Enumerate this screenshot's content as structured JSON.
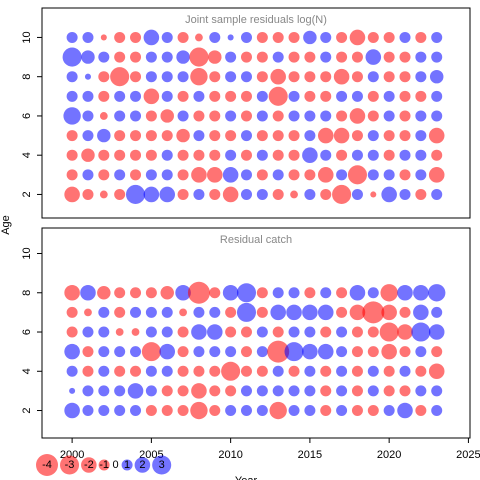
{
  "ylabel": "Age",
  "chart_data": [
    {
      "type": "bubble",
      "title": "Joint sample residuals log(N)",
      "x": [
        2000,
        2001,
        2002,
        2003,
        2004,
        2005,
        2006,
        2007,
        2008,
        2009,
        2010,
        2011,
        2012,
        2013,
        2014,
        2015,
        2016,
        2017,
        2018,
        2019,
        2020,
        2021,
        2022,
        2023
      ],
      "y": [
        2,
        3,
        4,
        5,
        6,
        7,
        8,
        9,
        10
      ],
      "values": [
        [
          -2,
          -1,
          -0.5,
          -1,
          3,
          2,
          2,
          -1,
          1,
          -1,
          -2,
          1,
          1,
          -1,
          -0.5,
          1,
          -1,
          -3,
          1,
          -0.3,
          2,
          1,
          -1,
          1
        ],
        [
          -1,
          1,
          -1,
          1,
          -1,
          1,
          1,
          -1,
          -2,
          -2,
          2,
          1,
          -1,
          1,
          -1,
          -1,
          -2,
          1,
          -3,
          1,
          1,
          -1,
          1,
          -2
        ],
        [
          -1,
          -1.5,
          -1,
          -1,
          -1,
          -1,
          1,
          -1,
          -1,
          -1,
          1,
          -1,
          1,
          -1,
          -1,
          2,
          1,
          -1,
          1,
          1,
          -1,
          1,
          1,
          -1
        ],
        [
          -1,
          1,
          1.5,
          -1,
          -1,
          -1,
          -1,
          -1.5,
          1,
          -1,
          -1,
          1,
          -1,
          -1,
          -1,
          1,
          -2,
          -2,
          -1,
          1,
          -1,
          -1,
          1,
          -2
        ],
        [
          2.5,
          1,
          -0.5,
          1,
          1,
          -1,
          -1.5,
          1,
          -1,
          -1,
          1,
          -1,
          1,
          -1,
          1,
          1,
          1,
          -1,
          -2,
          -1,
          1,
          -1,
          1,
          1
        ],
        [
          1,
          1,
          -1,
          1,
          1,
          -2,
          1,
          -1,
          1,
          -1,
          -1,
          -1,
          1,
          -3,
          1,
          -1,
          -1,
          1,
          1,
          -1,
          1,
          -1,
          -1,
          1
        ],
        [
          1,
          0.3,
          -1,
          -3,
          -1,
          1,
          1,
          1,
          -2.5,
          -1,
          1,
          1,
          -1,
          -2,
          -1,
          -1,
          -1,
          -2,
          -1,
          1,
          -1,
          -1,
          1,
          1.5
        ],
        [
          3,
          1.5,
          1,
          -1,
          -1,
          1,
          1,
          1.5,
          -3,
          -1.5,
          1,
          -1,
          -1,
          1,
          -1,
          -1,
          1,
          -1,
          -1,
          2,
          -1,
          -1,
          1,
          1
        ],
        [
          1,
          1,
          -0.3,
          -1,
          -1,
          2,
          1,
          -1,
          -0.5,
          1,
          0.3,
          1,
          -1,
          -1,
          -1,
          1.5,
          1,
          -1,
          -2,
          -1,
          -1,
          1,
          -1,
          1
        ]
      ],
      "xlim": [
        1998.1,
        2025.1
      ],
      "ylim": [
        0.8,
        11.5
      ],
      "yticks": [
        2,
        4,
        6,
        8,
        10
      ],
      "colors": {
        "negative": "#ff0000",
        "positive": "#0000ff"
      }
    },
    {
      "type": "bubble",
      "title": "Residual catch",
      "xlabel": "Year",
      "x": [
        2000,
        2001,
        2002,
        2003,
        2004,
        2005,
        2006,
        2007,
        2008,
        2009,
        2010,
        2011,
        2012,
        2013,
        2014,
        2015,
        2016,
        2017,
        2018,
        2019,
        2020,
        2021,
        2022,
        2023
      ],
      "y": [
        2,
        3,
        4,
        5,
        6,
        7,
        8
      ],
      "values": [
        [
          2,
          1,
          1,
          1,
          1,
          -1,
          -1,
          -1,
          -2.5,
          -1,
          1,
          1,
          1,
          -2.5,
          1,
          1,
          -1,
          1,
          -1,
          -1,
          1,
          2,
          -1,
          1
        ],
        [
          0.3,
          1,
          1,
          1,
          2,
          1,
          -1,
          -1,
          -2,
          -1,
          -1,
          1,
          1,
          1,
          1,
          1,
          -1,
          1,
          -1,
          1,
          -1,
          -1,
          1,
          1
        ],
        [
          1,
          -1,
          1,
          -1,
          -1,
          1,
          1,
          -1,
          -1,
          -1,
          -3,
          -1,
          -1,
          1,
          -1,
          1,
          -1,
          1,
          -1,
          1,
          -1,
          1,
          -1,
          -2
        ],
        [
          2,
          -1,
          1,
          1,
          1,
          -3,
          2,
          -1,
          1,
          1,
          1,
          -1,
          1,
          -4,
          3,
          2,
          2,
          1,
          -1,
          -1,
          -2,
          -1,
          1,
          -1
        ],
        [
          -1,
          1,
          1,
          -0.5,
          -0.5,
          1,
          1,
          -1,
          2,
          2,
          -1,
          -1,
          1,
          -1,
          1,
          1,
          -1,
          1,
          -1,
          -1,
          -3,
          -2,
          3,
          2
        ],
        [
          -1,
          -0.5,
          1,
          -1,
          1,
          1,
          1,
          -0.5,
          1,
          1,
          -1,
          3,
          -1,
          2,
          2,
          2,
          2,
          -1,
          -2,
          -4,
          -2,
          -1,
          2,
          1
        ],
        [
          -2,
          2,
          -1.5,
          -1,
          -1,
          -1,
          -1.5,
          2,
          -4,
          -1,
          2,
          3,
          -1,
          1,
          1,
          -1,
          1,
          -1,
          2,
          1,
          -2.5,
          2,
          2,
          2.5
        ]
      ],
      "xlim": [
        1998.1,
        2025.1
      ],
      "ylim": [
        0.6,
        11.3
      ],
      "yticks": [
        2,
        4,
        6,
        8,
        10
      ],
      "xticks": [
        2000,
        2005,
        2010,
        2015,
        2020,
        2025
      ],
      "colors": {
        "negative": "#ff0000",
        "positive": "#0000ff"
      },
      "size_legend": [
        -4,
        -3,
        -2,
        -1,
        0,
        1,
        2,
        3
      ]
    }
  ]
}
